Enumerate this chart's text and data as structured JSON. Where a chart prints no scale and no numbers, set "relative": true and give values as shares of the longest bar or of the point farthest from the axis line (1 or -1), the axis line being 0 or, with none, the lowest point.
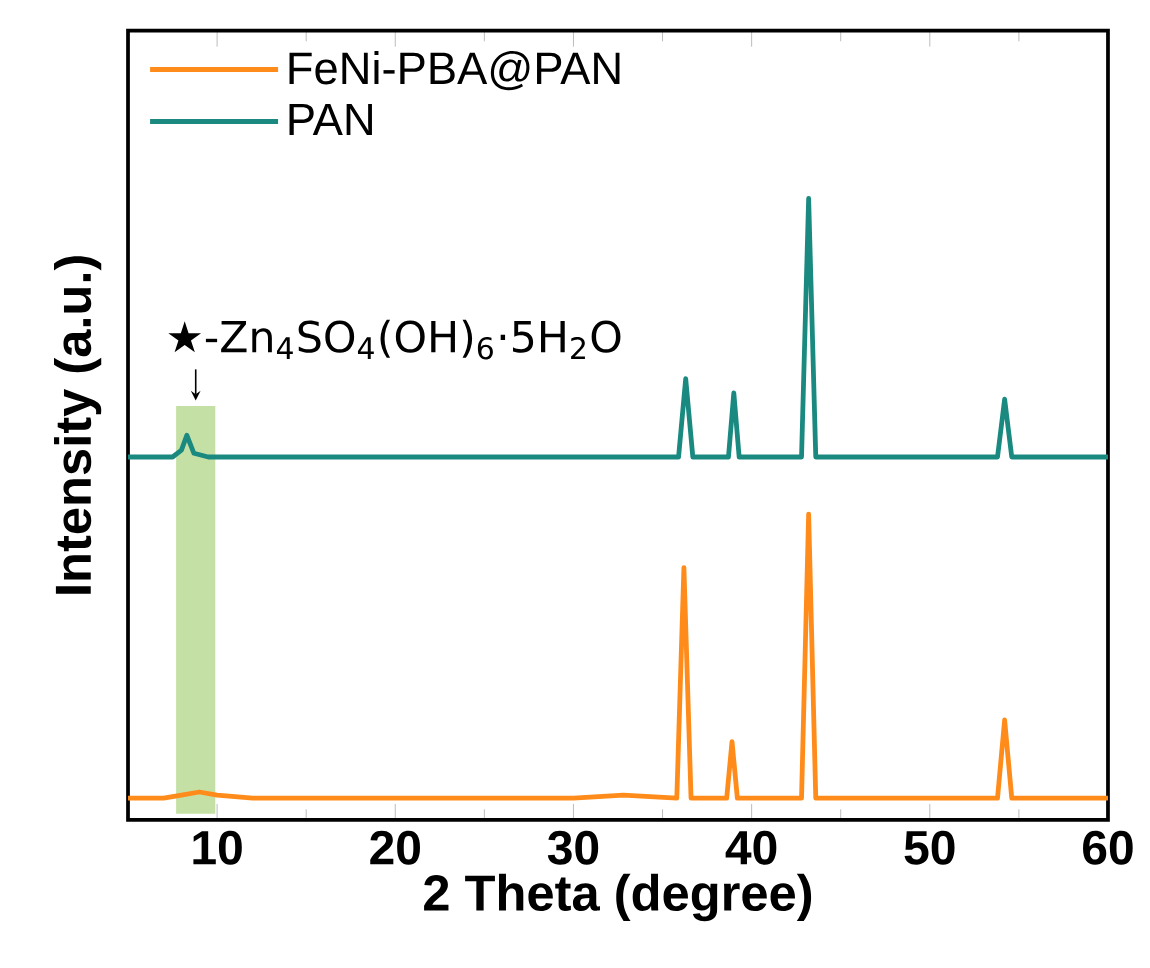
{
  "chart_data": {
    "type": "line",
    "xlabel": "2 Theta (degree)",
    "ylabel": "Intensity (a.u.)",
    "relative": true,
    "xlim": [
      5,
      60
    ],
    "xticks": [
      10,
      20,
      30,
      40,
      50,
      60
    ],
    "legend": "top left",
    "marker": "none",
    "line_style": "solid",
    "grid": false,
    "series": [
      {
        "name": "FeNi-PBA@PAN",
        "color": "#ff8c1a",
        "x": [
          5,
          7,
          8,
          9,
          10,
          12,
          20,
          30,
          32.8,
          35.8,
          36.2,
          36.6,
          38.6,
          38.9,
          39.2,
          42.8,
          43.2,
          43.6,
          53.8,
          54.2,
          54.6,
          60
        ],
        "values": [
          0.035,
          0.035,
          0.04,
          0.045,
          0.04,
          0.035,
          0.035,
          0.035,
          0.04,
          0.035,
          0.406,
          0.035,
          0.035,
          0.126,
          0.035,
          0.035,
          0.492,
          0.035,
          0.035,
          0.161,
          0.035,
          0.035
        ]
      },
      {
        "name": "PAN",
        "color": "#1a8a80",
        "x": [
          5,
          7.5,
          8.0,
          8.3,
          8.7,
          9.5,
          20,
          35.9,
          36.3,
          36.7,
          38.7,
          39.0,
          39.3,
          42.8,
          43.2,
          43.6,
          53.8,
          54.2,
          54.6,
          60
        ],
        "values": [
          0.584,
          0.584,
          0.595,
          0.619,
          0.59,
          0.584,
          0.584,
          0.584,
          0.71,
          0.584,
          0.584,
          0.687,
          0.584,
          0.584,
          1,
          0.584,
          0.584,
          0.677,
          0.584,
          0.584
        ]
      }
    ],
    "bands": [
      {
        "axis": "x",
        "from": 7.7,
        "to": 9.9,
        "color": "#c5e0a5"
      }
    ],
    "annotations": [
      "★-Zn$_{4}$SO$_{4}$(OH)$_{6}$·5H$_{2}$O"
    ]
  }
}
